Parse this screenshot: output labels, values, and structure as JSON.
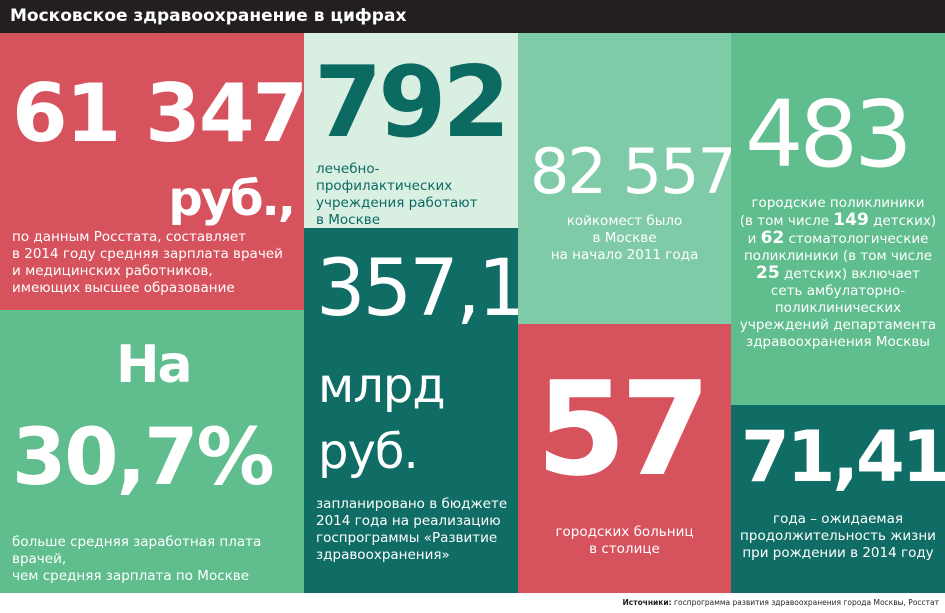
{
  "header": {
    "title": "Московское здравоохранение в цифрах"
  },
  "tiles": {
    "salary": {
      "value": "61 347",
      "unit": "руб.,",
      "lines": [
        "по данным Росстата, составляет",
        "в 2014 году средняя зарплата врачей",
        "и медицинских работников,",
        "имеющих высшее образование"
      ]
    },
    "institutions": {
      "value": "792",
      "lines": [
        "лечебно-профилактических",
        "учреждения работают",
        "в Москве"
      ]
    },
    "beds": {
      "value": "82 557",
      "lines": [
        "койкомест было",
        "в Москве",
        "на начало 2011 года"
      ]
    },
    "polyclinics": {
      "value": "483",
      "line1": "городские поликлиники",
      "line2_pre": "(в том числе ",
      "line2_num": "149",
      "line2_post": " детских)",
      "line3_pre": "и ",
      "line3_num": "62",
      "line3_post": " стоматологические",
      "line4": "поликлиники (в том числе",
      "line5_num": "25",
      "line5_post": " детских) включает",
      "line6": "сеть амбулаторно-",
      "line7": "поликлинических",
      "line8": "учреждений департамента",
      "line9": "здравоохранения Москвы"
    },
    "percent": {
      "prefix": "На",
      "value": "30,7%",
      "lines": [
        "больше средняя заработная плата врачей,",
        "чем средняя зарплата по Москве"
      ]
    },
    "budget": {
      "value": "357,1",
      "unit1": "млрд",
      "unit2": "руб.",
      "lines": [
        "запланировано в бюджете",
        "2014 года на реализацию",
        "госпрограммы «Развитие",
        "здравоохранения»"
      ]
    },
    "hospitals": {
      "value": "57",
      "lines": [
        "городских больниц",
        "в столице"
      ]
    },
    "life": {
      "value": "71,41",
      "lines": [
        "года – ожидаемая",
        "продолжительность жизни",
        "при рождении в 2014 году"
      ]
    }
  },
  "footer": {
    "label": "Источники:",
    "text": " госпрограмма развития здравоохранения города Москвы, Росстат"
  }
}
